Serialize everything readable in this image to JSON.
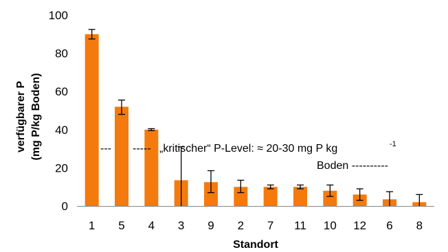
{
  "chart_data": {
    "type": "bar",
    "xlabel": "Standort",
    "ylabel_line1": "verfügbarer P",
    "ylabel_line2": "(mg P/kg Boden)",
    "ylim": [
      0,
      100
    ],
    "yticks": [
      0,
      20,
      40,
      60,
      80,
      100
    ],
    "ytick_labels": [
      "0",
      "20",
      "40",
      "60",
      "80",
      "100"
    ],
    "grid": false,
    "categories": [
      "1",
      "5",
      "4",
      "3",
      "9",
      "2",
      "7",
      "11",
      "10",
      "12",
      "6",
      "8"
    ],
    "values": [
      90,
      52,
      40,
      13.5,
      12.5,
      10,
      10,
      10,
      8,
      6,
      3.5,
      2
    ],
    "error_bars": [
      [
        87.5,
        92.5
      ],
      [
        48,
        55.5
      ],
      [
        39.5,
        40.5
      ],
      [
        0,
        31
      ],
      [
        7,
        18.5
      ],
      [
        7,
        13.5
      ],
      [
        9,
        11
      ],
      [
        9,
        11
      ],
      [
        5,
        11
      ],
      [
        3,
        9
      ],
      [
        0,
        7.5
      ],
      [
        0,
        6
      ]
    ],
    "colors": {
      "bar": "#F47A0E",
      "error": "#000000",
      "axis": "#868686"
    },
    "annotation": {
      "left_dashes": "---",
      "mid_dashes": "-----",
      "text": "„kritischer“ P-Level: ≈ 20-30 mg P kg",
      "superscript": "-1",
      "line2": "Boden ----------"
    }
  }
}
